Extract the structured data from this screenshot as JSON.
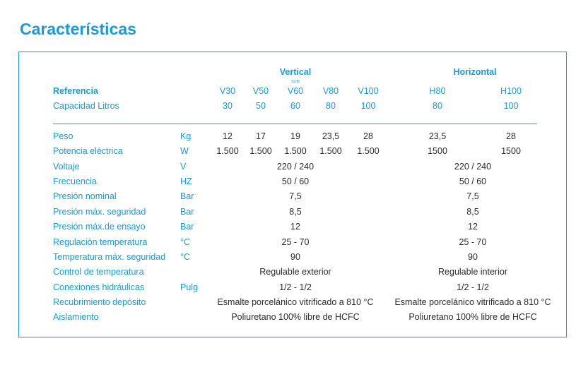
{
  "title": "Características",
  "groups": {
    "vertical": "Vertical",
    "horizontal": "Horizontal"
  },
  "slim": "SLIM",
  "header": {
    "ref_label": "Referencia",
    "refs": [
      "V30",
      "V50",
      "V60",
      "V80",
      "V100",
      "H80",
      "H100"
    ],
    "cap_label": "Capacidad Litros",
    "caps": [
      "30",
      "50",
      "60",
      "80",
      "100",
      "80",
      "100"
    ]
  },
  "rows": [
    {
      "label": "Peso",
      "unit": "Kg",
      "vals": [
        "12",
        "17",
        "19",
        "23,5",
        "28",
        "23,5",
        "28"
      ]
    },
    {
      "label": "Potencia eléctrica",
      "unit": "W",
      "vals": [
        "1.500",
        "1.500",
        "1.500",
        "1.500",
        "1.500",
        "1500",
        "1500"
      ]
    },
    {
      "label": "Voltaje",
      "unit": "V",
      "v": "220 / 240",
      "h": "220 / 240"
    },
    {
      "label": "Frecuencia",
      "unit": "HZ",
      "v": "50 / 60",
      "h": "50 / 60"
    },
    {
      "label": "Presión nominal",
      "unit": "Bar",
      "v": "7,5",
      "h": "7,5"
    },
    {
      "label": "Presión máx. seguridad",
      "unit": "Bar",
      "v": "8,5",
      "h": "8,5"
    },
    {
      "label": "Presión máx.de ensayo",
      "unit": "Bar",
      "v": "12",
      "h": "12"
    },
    {
      "label": "Regulación temperatura",
      "unit": "°C",
      "v": "25 - 70",
      "h": "25 - 70"
    },
    {
      "label": "Temperatura máx. seguridad",
      "unit": "°C",
      "v": "90",
      "h": "90"
    },
    {
      "label": "Control de temperatura",
      "unit": "",
      "v": "Regulable exterior",
      "h": "Regulable interior"
    },
    {
      "label": "Conexiones hidráulicas",
      "unit": "Pulg",
      "v": "1/2 - 1/2",
      "h": "1/2 - 1/2"
    },
    {
      "label": "Recubrimiento depósito",
      "unit": "",
      "v": "Esmalte porcelánico vitrificado a 810 °C",
      "h": "Esmalte porcelánico vitrificado a 810 °C"
    },
    {
      "label": "Aislamiento",
      "unit": "",
      "v": "Poliuretano 100% libre de HCFC",
      "h": "Poliuretano 100% libre de HCFC"
    }
  ]
}
